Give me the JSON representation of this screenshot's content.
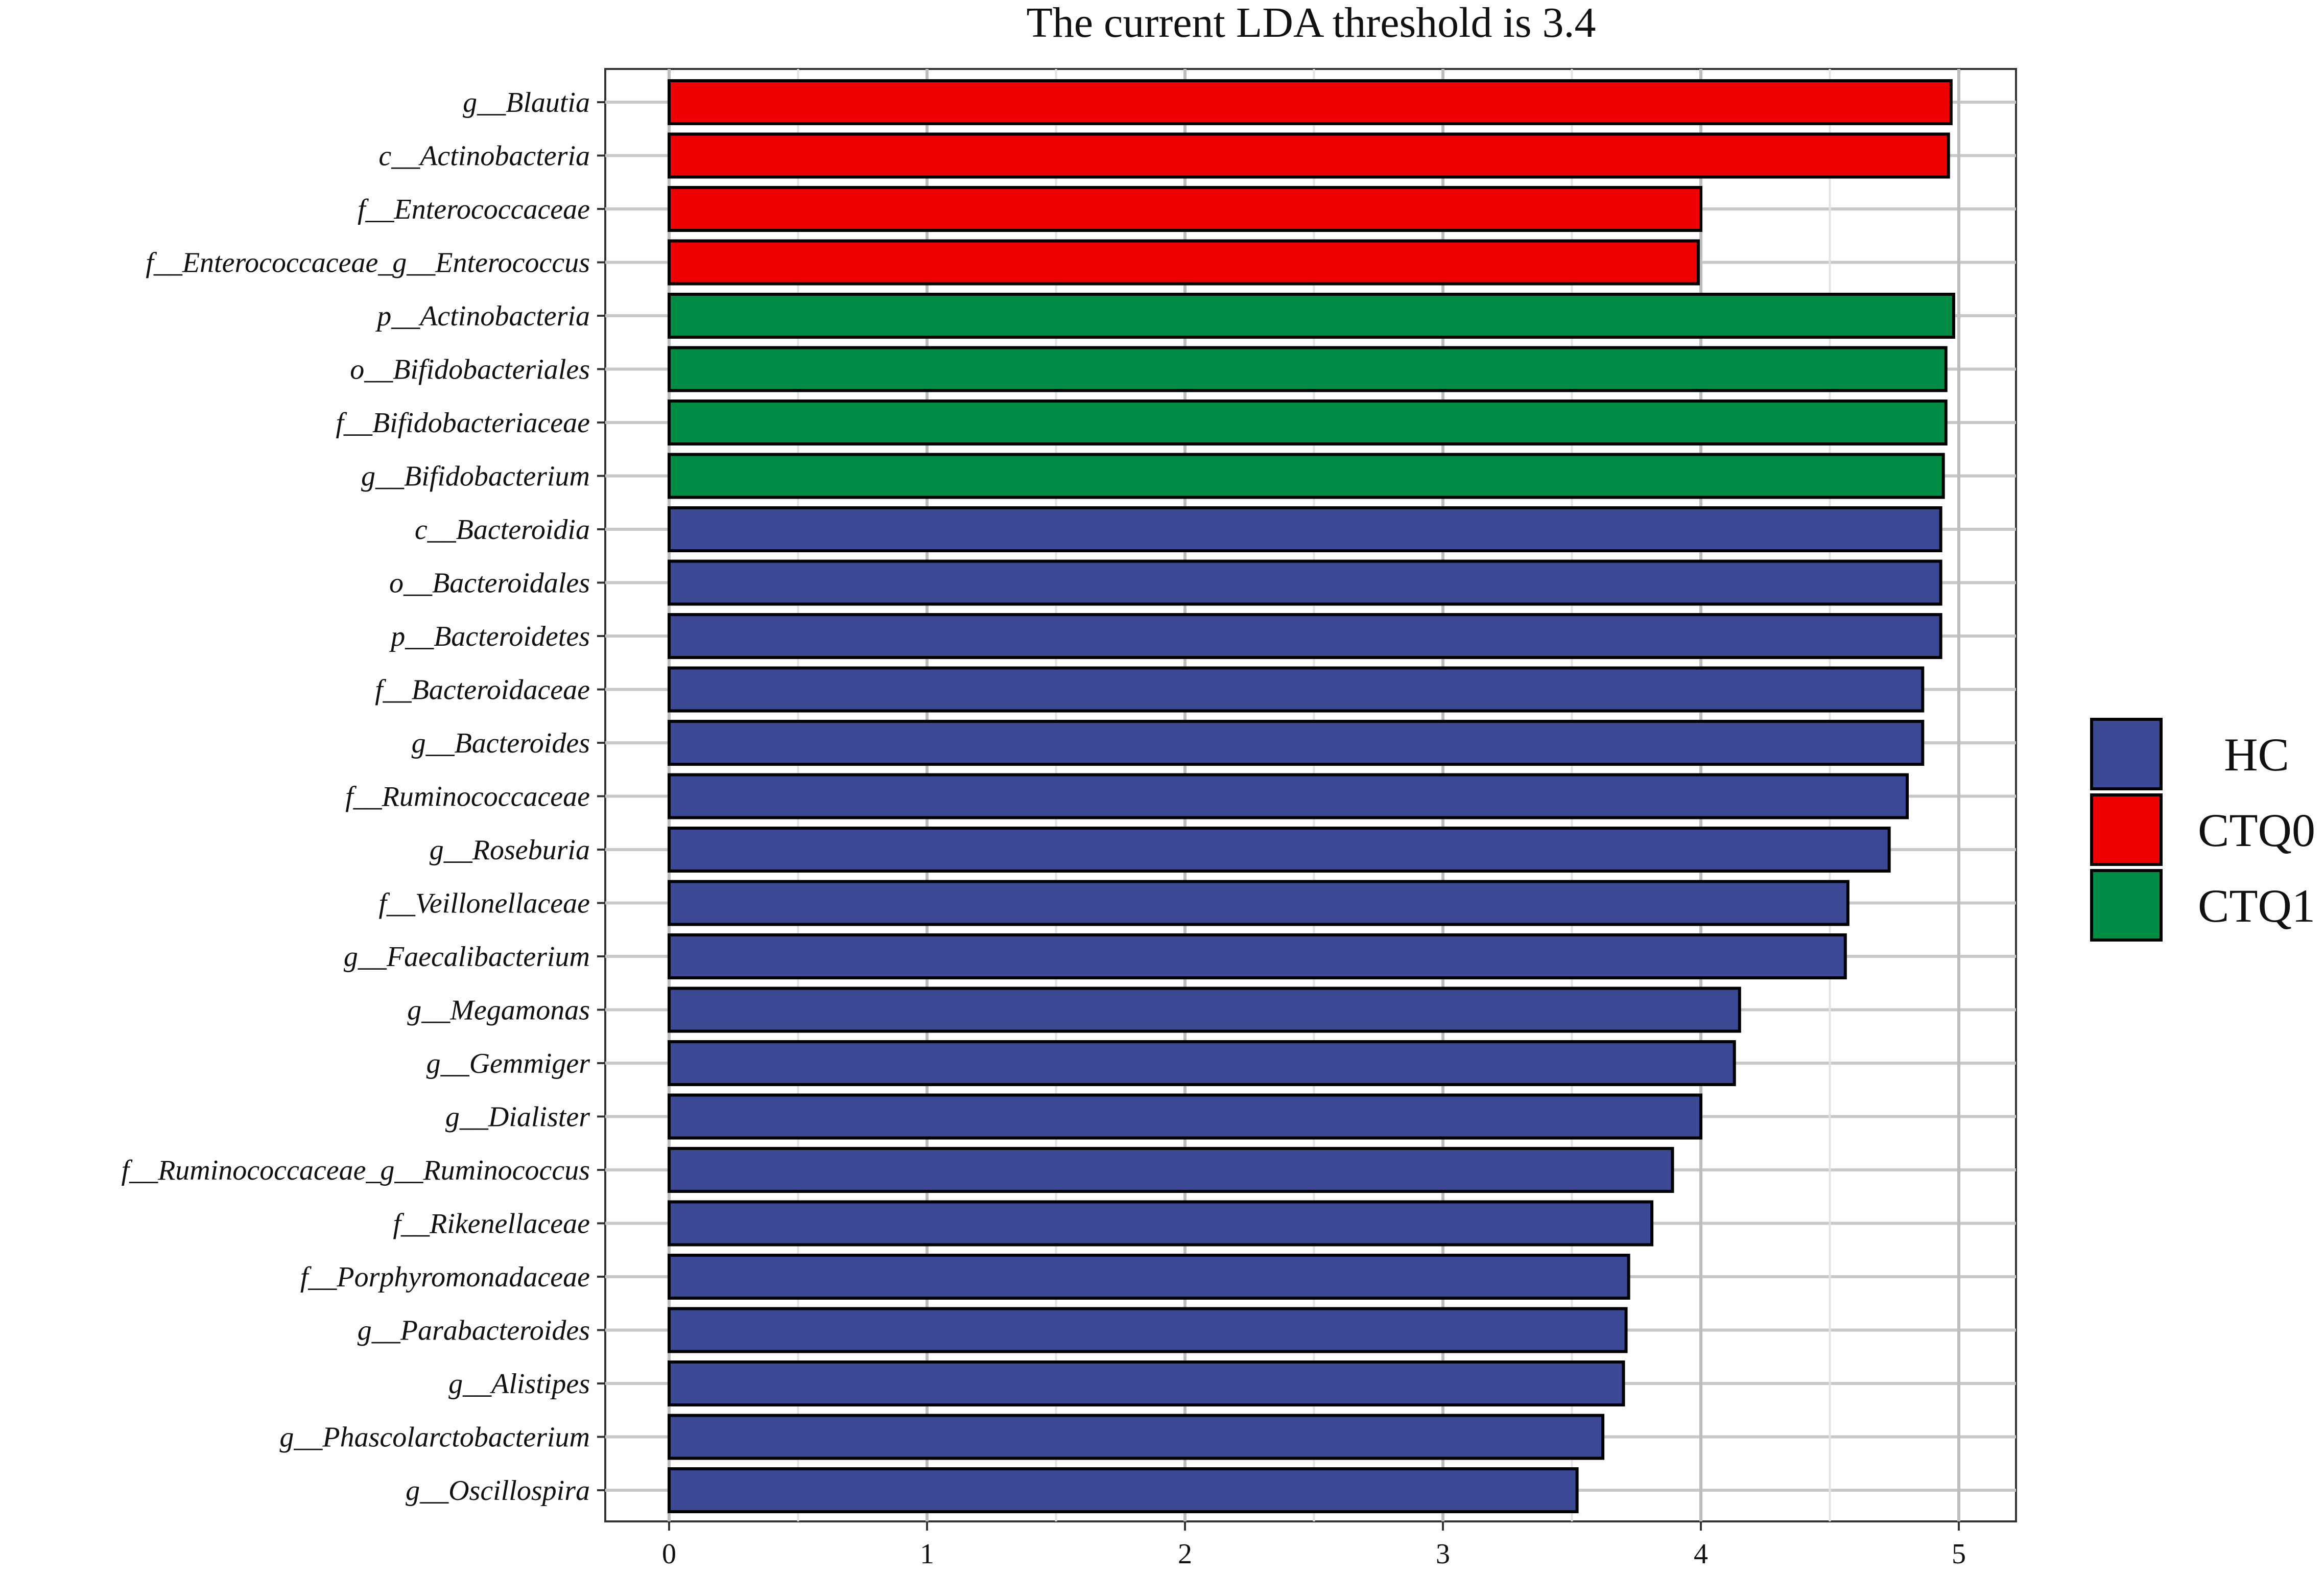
{
  "chart_data": {
    "type": "bar",
    "orientation": "horizontal",
    "title": "The current LDA threshold is 3.4",
    "xlabel": "",
    "ylabel": "",
    "xlim": [
      0,
      5.2
    ],
    "x_ticks": [
      "0",
      "1",
      "2",
      "3",
      "4",
      "5"
    ],
    "grid": true,
    "legend_position": "right",
    "groups": [
      {
        "name": "HC",
        "color": "#3B4994"
      },
      {
        "name": "CTQ0",
        "color": "#EE0000"
      },
      {
        "name": "CTQ1",
        "color": "#008B45"
      }
    ],
    "bars": [
      {
        "label": "g__Blautia",
        "value": 4.97,
        "group": "CTQ0"
      },
      {
        "label": "c__Actinobacteria",
        "value": 4.96,
        "group": "CTQ0"
      },
      {
        "label": "f__Enterococcaceae",
        "value": 4.0,
        "group": "CTQ0"
      },
      {
        "label": "f__Enterococcaceae_g__Enterococcus",
        "value": 3.99,
        "group": "CTQ0"
      },
      {
        "label": "p__Actinobacteria",
        "value": 4.98,
        "group": "CTQ1"
      },
      {
        "label": "o__Bifidobacteriales",
        "value": 4.95,
        "group": "CTQ1"
      },
      {
        "label": "f__Bifidobacteriaceae",
        "value": 4.95,
        "group": "CTQ1"
      },
      {
        "label": "g__Bifidobacterium",
        "value": 4.94,
        "group": "CTQ1"
      },
      {
        "label": "c__Bacteroidia",
        "value": 4.93,
        "group": "HC"
      },
      {
        "label": "o__Bacteroidales",
        "value": 4.93,
        "group": "HC"
      },
      {
        "label": "p__Bacteroidetes",
        "value": 4.93,
        "group": "HC"
      },
      {
        "label": "f__Bacteroidaceae",
        "value": 4.86,
        "group": "HC"
      },
      {
        "label": "g__Bacteroides",
        "value": 4.86,
        "group": "HC"
      },
      {
        "label": "f__Ruminococcaceae",
        "value": 4.8,
        "group": "HC"
      },
      {
        "label": "g__Roseburia",
        "value": 4.73,
        "group": "HC"
      },
      {
        "label": "f__Veillonellaceae",
        "value": 4.57,
        "group": "HC"
      },
      {
        "label": "g__Faecalibacterium",
        "value": 4.56,
        "group": "HC"
      },
      {
        "label": "g__Megamonas",
        "value": 4.15,
        "group": "HC"
      },
      {
        "label": "g__Gemmiger",
        "value": 4.13,
        "group": "HC"
      },
      {
        "label": "g__Dialister",
        "value": 4.0,
        "group": "HC"
      },
      {
        "label": "f__Ruminococcaceae_g__Ruminococcus",
        "value": 3.89,
        "group": "HC"
      },
      {
        "label": "f__Rikenellaceae",
        "value": 3.81,
        "group": "HC"
      },
      {
        "label": "f__Porphyromonadaceae",
        "value": 3.72,
        "group": "HC"
      },
      {
        "label": "g__Parabacteroides",
        "value": 3.71,
        "group": "HC"
      },
      {
        "label": "g__Alistipes",
        "value": 3.7,
        "group": "HC"
      },
      {
        "label": "g__Phascolarctobacterium",
        "value": 3.62,
        "group": "HC"
      },
      {
        "label": "g__Oscillospira",
        "value": 3.52,
        "group": "HC"
      }
    ]
  }
}
